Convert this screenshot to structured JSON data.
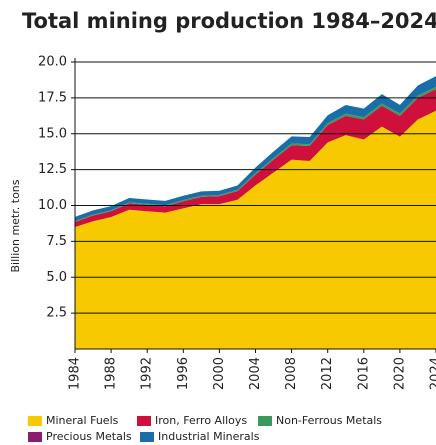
{
  "chart_data": {
    "type": "area",
    "stacked": true,
    "title": "Total mining production 1984–2024",
    "y_label": "Billion metr. tons",
    "x": [
      1984,
      1986,
      1988,
      1990,
      1992,
      1994,
      1996,
      1998,
      2000,
      2002,
      2004,
      2006,
      2008,
      2010,
      2012,
      2014,
      2016,
      2018,
      2020,
      2022,
      2024
    ],
    "series": [
      {
        "name": "Mineral Fuels",
        "color": "#f7c900",
        "values": [
          8.5,
          8.9,
          9.2,
          9.7,
          9.6,
          9.5,
          9.8,
          10.1,
          10.1,
          10.4,
          11.4,
          12.3,
          13.2,
          13.1,
          14.4,
          14.9,
          14.6,
          15.5,
          14.8,
          16.0,
          16.6
        ]
      },
      {
        "name": "Iron, Ferro Alloys",
        "color": "#cf0f3c",
        "values": [
          0.35,
          0.4,
          0.4,
          0.45,
          0.45,
          0.45,
          0.5,
          0.5,
          0.55,
          0.6,
          0.75,
          0.9,
          1.0,
          1.05,
          1.2,
          1.35,
          1.4,
          1.45,
          1.45,
          1.5,
          1.5
        ]
      },
      {
        "name": "Non-Ferrous Metals",
        "color": "#3a9a5b",
        "values": [
          0.05,
          0.05,
          0.05,
          0.06,
          0.06,
          0.06,
          0.07,
          0.07,
          0.07,
          0.08,
          0.09,
          0.1,
          0.11,
          0.11,
          0.13,
          0.14,
          0.14,
          0.15,
          0.15,
          0.16,
          0.16
        ]
      },
      {
        "name": "Precious Metals",
        "color": "#8a1e6e",
        "values": [
          0.01,
          0.01,
          0.01,
          0.01,
          0.01,
          0.01,
          0.01,
          0.01,
          0.01,
          0.01,
          0.01,
          0.01,
          0.01,
          0.01,
          0.01,
          0.01,
          0.01,
          0.01,
          0.01,
          0.01,
          0.01
        ]
      },
      {
        "name": "Industrial Minerals",
        "color": "#1a6ea8",
        "values": [
          0.3,
          0.3,
          0.3,
          0.3,
          0.3,
          0.3,
          0.3,
          0.3,
          0.3,
          0.3,
          0.4,
          0.45,
          0.5,
          0.5,
          0.55,
          0.6,
          0.6,
          0.65,
          0.6,
          0.7,
          0.75
        ]
      }
    ],
    "xlim": [
      1984,
      2024
    ],
    "xticks": [
      1984,
      1988,
      1992,
      1996,
      2000,
      2004,
      2008,
      2012,
      2016,
      2020,
      2024
    ],
    "ylim": [
      0,
      20
    ],
    "yticks": [
      2.5,
      {
        "value": 5,
        "label": "5.0"
      },
      7.5,
      {
        "value": 10,
        "label": "10.0"
      },
      12.5,
      {
        "value": 15,
        "label": "15.0"
      },
      17.5,
      {
        "value": 20,
        "label": "20.0"
      }
    ],
    "grid": true
  }
}
